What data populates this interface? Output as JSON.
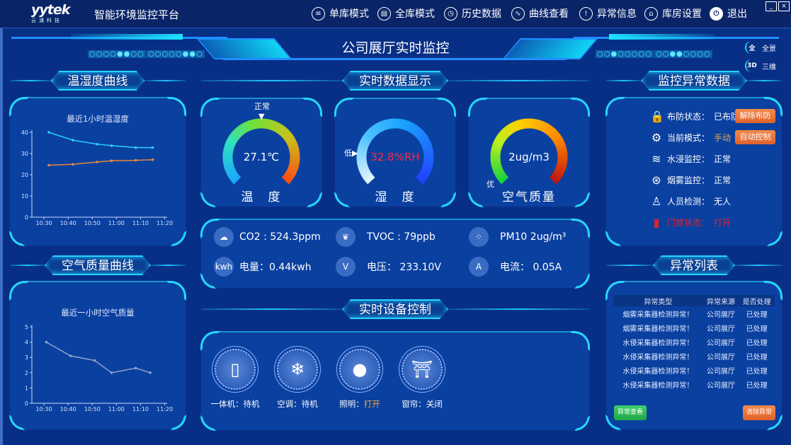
{
  "header": {
    "logo_text": "yytek",
    "logo_sub": "云浦科技",
    "app_title": "智能环境监控平台",
    "nav": [
      {
        "label": "单库模式",
        "icon": "database-icon",
        "glyph": "≡"
      },
      {
        "label": "全库模式",
        "icon": "database-multi-icon",
        "glyph": "▤"
      },
      {
        "label": "历史数据",
        "icon": "history-icon",
        "glyph": "◷"
      },
      {
        "label": "曲线查看",
        "icon": "curve-icon",
        "glyph": "∿"
      },
      {
        "label": "异常信息",
        "icon": "warning-icon",
        "glyph": "!"
      },
      {
        "label": "库房设置",
        "icon": "warehouse-icon",
        "glyph": "⌂"
      },
      {
        "label": "退出",
        "icon": "power-icon",
        "glyph": "⏻"
      }
    ],
    "window": {
      "minimize": "_",
      "close": "×"
    }
  },
  "banner": {
    "title": "公司展厅实时监控",
    "dots": [
      "○○○○●●○○",
      "○○○○○●●○",
      "○○●○○○○○",
      "○○●●○○○○"
    ],
    "views": [
      {
        "icon": "全",
        "label": "全景"
      },
      {
        "icon": "3D",
        "label": "三维"
      }
    ]
  },
  "sections": {
    "temp_curve": "温湿度曲线",
    "air_curve": "空气质量曲线",
    "realtime": "实时数据显示",
    "device": "实时设备控制",
    "alarm_data": "监控异常数据",
    "alarm_list": "异常列表"
  },
  "chart_data": [
    {
      "type": "line",
      "title": "最近1小时温湿度",
      "x": [
        "10:32",
        "10:42",
        "10:52",
        "10:58",
        "11:08",
        "11:15"
      ],
      "xticks": [
        "10:30",
        "10:40",
        "10:50",
        "11:00",
        "11:10",
        "11:20"
      ],
      "yticks": [
        "0",
        "10",
        "20",
        "30",
        "40"
      ],
      "ylim": [
        0,
        40
      ],
      "series": [
        {
          "color": "#29d0ff",
          "values": [
            40,
            36.3,
            34.4,
            33.7,
            32.8,
            32.8
          ]
        },
        {
          "color": "#e8873a",
          "values": [
            24.5,
            24.9,
            26,
            26.6,
            26.8,
            27.1
          ]
        }
      ]
    },
    {
      "type": "line",
      "title": "最近一小时空气质量",
      "x": [
        "10:31",
        "10:41",
        "10:51",
        "10:58",
        "11:08",
        "11:14"
      ],
      "xticks": [
        "10:30",
        "10:40",
        "10:50",
        "11:00",
        "11:10",
        "11:20"
      ],
      "yticks": [
        "0",
        "1",
        "2",
        "3",
        "4",
        "5"
      ],
      "ylim": [
        0,
        5
      ],
      "series": [
        {
          "color": "#8ea3c8",
          "values": [
            4,
            3.1,
            2.8,
            2,
            2.3,
            2
          ]
        }
      ]
    }
  ],
  "gauges": [
    {
      "value": "27.1℃",
      "label": "温　度",
      "marker": "正常",
      "value_color": "#ffffff"
    },
    {
      "value": "32.8%RH",
      "label": "湿　度",
      "marker": "低",
      "value_color": "#ff2a3a"
    },
    {
      "value": "2ug/m3",
      "label": "空气质量",
      "marker": "优",
      "value_color": "#ffffff"
    }
  ],
  "readings": [
    {
      "icon": "co2-cloud-icon",
      "glyph": "☁",
      "text": "CO2 : 524.3ppm"
    },
    {
      "icon": "leaf-icon",
      "glyph": "❦",
      "text": "TVOC : 79ppb"
    },
    {
      "icon": "pm10-icon",
      "glyph": "⁘",
      "text": "PM10  2ug/m³"
    },
    {
      "icon": "kwh-icon",
      "glyph": "kwh",
      "text": "电量：0.44kwh"
    },
    {
      "icon": "voltage-icon",
      "glyph": "V",
      "text": "电压：  233.10V"
    },
    {
      "icon": "current-icon",
      "glyph": "A",
      "text": "电流：  0.05A"
    }
  ],
  "devices": [
    {
      "icon": "cabinet-icon",
      "glyph": "▯",
      "name": "一体机：",
      "state": "待机",
      "state_color": "#ffffff"
    },
    {
      "icon": "snowflake-icon",
      "glyph": "❄",
      "name": "空调：",
      "state": "待机",
      "state_color": "#ffffff"
    },
    {
      "icon": "bulb-icon",
      "glyph": "●",
      "name": "照明：",
      "state": "打开",
      "state_color": "#f0a640"
    },
    {
      "icon": "curtain-icon",
      "glyph": "⛩",
      "name": "窗帘：",
      "state": "关闭",
      "state_color": "#ffffff"
    }
  ],
  "status": [
    {
      "icon": "lock-icon",
      "glyph": "🔒",
      "label": "布防状态：",
      "value": "已布防",
      "color": "#ffffff",
      "button": "解除布防"
    },
    {
      "icon": "gear-icon",
      "glyph": "⚙",
      "label": "当前模式：",
      "value": "手动",
      "color": "#e9a54a",
      "button": "自动控制"
    },
    {
      "icon": "water-icon",
      "glyph": "≋",
      "label": "水浸监控：",
      "value": "正常",
      "color": "#ffffff"
    },
    {
      "icon": "smoke-icon",
      "glyph": "⊛",
      "label": "烟雾监控：",
      "value": "正常",
      "color": "#ffffff"
    },
    {
      "icon": "person-icon",
      "glyph": "♙",
      "label": "人员检测：",
      "value": "无人",
      "color": "#ffffff"
    },
    {
      "icon": "door-icon",
      "glyph": "▮",
      "label": "门禁状态：",
      "value": "打开",
      "color": "#e2202e"
    }
  ],
  "alarm_table": {
    "headers": [
      "异常类型",
      "异常来源",
      "是否处理"
    ],
    "rows": [
      [
        "烟雾采集器检测异常！",
        "公司展厅",
        "已处理"
      ],
      [
        "烟雾采集器检测异常！",
        "公司展厅",
        "已处理"
      ],
      [
        "水侵采集器检测异常！",
        "公司展厅",
        "已处理"
      ],
      [
        "水侵采集器检测异常！",
        "公司展厅",
        "已处理"
      ],
      [
        "水侵采集器检测异常！",
        "公司展厅",
        "已处理"
      ],
      [
        "水侵采集器检测异常！",
        "公司展厅",
        "已处理"
      ]
    ],
    "view_button": "异常查看",
    "clear_button": "清除异常"
  }
}
